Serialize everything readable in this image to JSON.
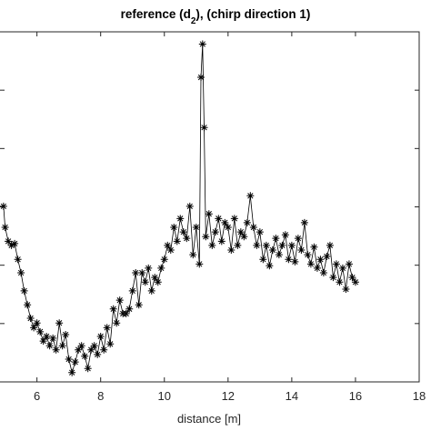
{
  "chart_data": {
    "type": "line",
    "title": {
      "before": "reference (d",
      "sub": "2",
      "after": "), (chirp direction 1)"
    },
    "x_label": "distance [m]",
    "marker": "asterisk",
    "color": "#000000",
    "xlim": [
      4.84,
      18
    ],
    "xticks": [
      6,
      8,
      10,
      12,
      14,
      16,
      18
    ],
    "ylim": [
      0,
      6
    ],
    "yticks": [
      1,
      2,
      3,
      4,
      5
    ],
    "x": [
      4.95,
      5.0,
      5.1,
      5.2,
      5.3,
      5.4,
      5.5,
      5.6,
      5.7,
      5.8,
      5.9,
      6.0,
      6.1,
      6.2,
      6.3,
      6.4,
      6.5,
      6.6,
      6.7,
      6.8,
      6.9,
      7.0,
      7.1,
      7.2,
      7.3,
      7.4,
      7.5,
      7.6,
      7.7,
      7.8,
      7.9,
      8.0,
      8.1,
      8.2,
      8.3,
      8.4,
      8.5,
      8.6,
      8.7,
      8.8,
      8.9,
      9.0,
      9.1,
      9.2,
      9.3,
      9.4,
      9.5,
      9.6,
      9.7,
      9.8,
      9.9,
      10.0,
      10.1,
      10.2,
      10.3,
      10.4,
      10.5,
      10.6,
      10.7,
      10.8,
      10.9,
      11.0,
      11.1,
      11.15,
      11.2,
      11.25,
      11.3,
      11.4,
      11.5,
      11.6,
      11.7,
      11.8,
      11.9,
      12.0,
      12.1,
      12.2,
      12.3,
      12.4,
      12.5,
      12.6,
      12.7,
      12.8,
      12.9,
      13.0,
      13.1,
      13.2,
      13.3,
      13.4,
      13.5,
      13.6,
      13.7,
      13.8,
      13.9,
      14.0,
      14.1,
      14.2,
      14.3,
      14.4,
      14.5,
      14.6,
      14.7,
      14.8,
      14.9,
      15.0,
      15.1,
      15.2,
      15.3,
      15.4,
      15.5,
      15.6,
      15.7,
      15.8,
      15.9,
      16.0
    ],
    "values": [
      3.01,
      2.65,
      2.41,
      2.34,
      2.37,
      2.1,
      1.87,
      1.56,
      1.32,
      1.09,
      0.93,
      1.01,
      0.86,
      0.7,
      0.78,
      0.62,
      0.75,
      0.55,
      1.01,
      0.62,
      0.81,
      0.39,
      0.16,
      0.34,
      0.55,
      0.62,
      0.44,
      0.23,
      0.55,
      0.62,
      0.47,
      0.78,
      0.55,
      0.93,
      0.65,
      1.25,
      1.01,
      1.4,
      1.17,
      1.17,
      1.25,
      1.56,
      1.87,
      1.32,
      1.87,
      1.71,
      1.95,
      1.56,
      1.79,
      1.71,
      1.95,
      2.1,
      2.34,
      2.26,
      2.65,
      2.41,
      2.8,
      2.57,
      2.46,
      3.01,
      2.18,
      2.65,
      2.02,
      5.22,
      5.79,
      4.36,
      2.49,
      2.88,
      2.34,
      2.57,
      2.8,
      2.41,
      2.73,
      2.65,
      2.26,
      2.8,
      2.34,
      2.57,
      2.49,
      2.73,
      3.19,
      2.65,
      2.34,
      2.57,
      2.1,
      2.34,
      1.99,
      2.26,
      2.46,
      2.18,
      2.34,
      2.52,
      2.1,
      2.34,
      2.06,
      2.46,
      2.26,
      2.73,
      2.18,
      2.02,
      2.31,
      1.95,
      2.1,
      1.87,
      2.15,
      2.34,
      1.79,
      2.02,
      1.71,
      1.95,
      1.59,
      2.02,
      1.79,
      1.71
    ]
  }
}
